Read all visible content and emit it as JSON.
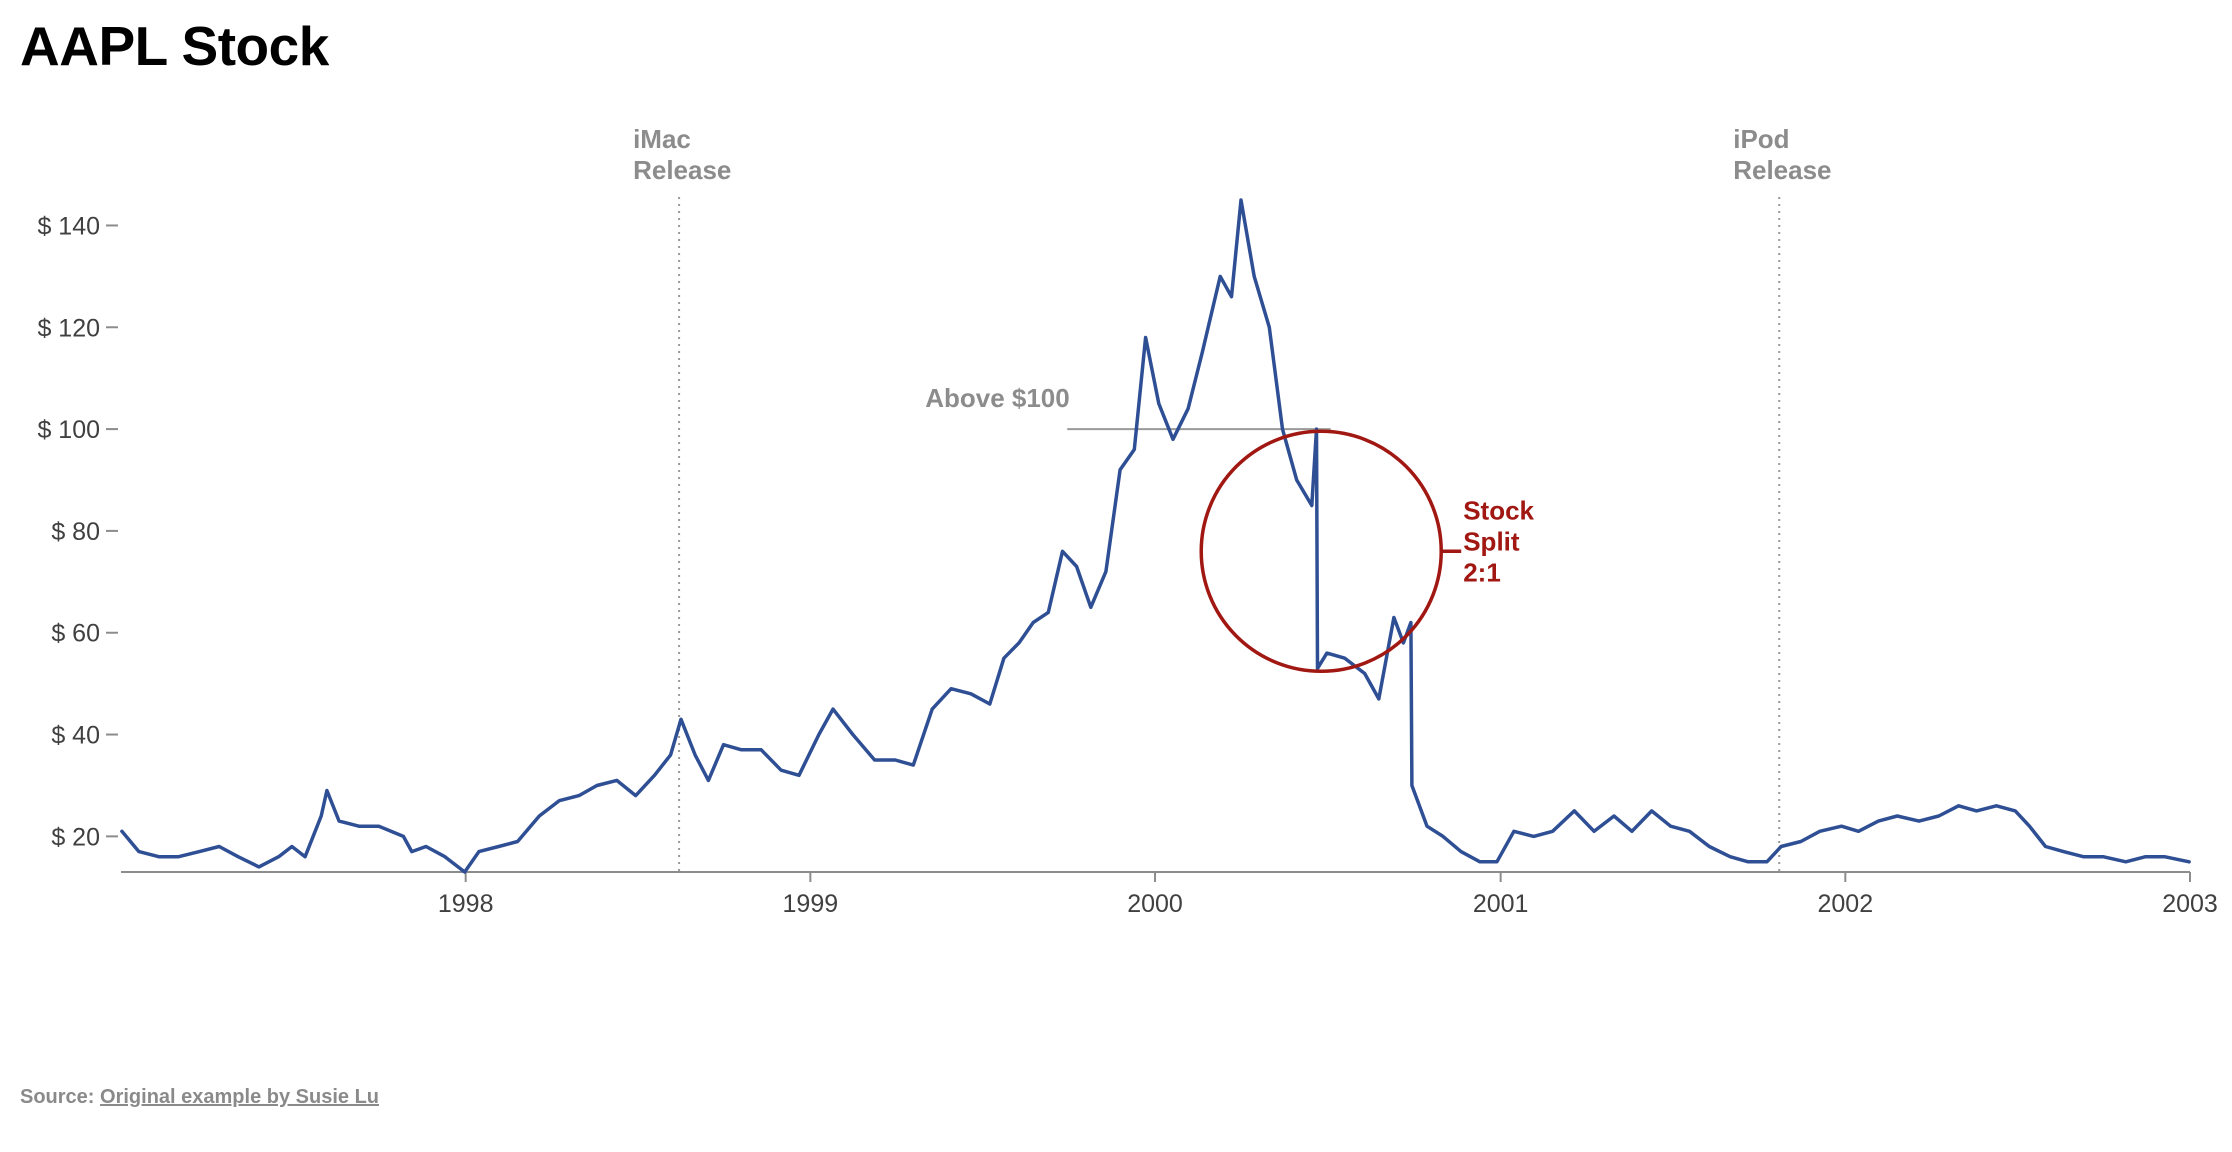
{
  "page": {
    "title": "AAPL Stock",
    "source_prefix": "Source: ",
    "source_link": "Original example by Susie Lu"
  },
  "colors": {
    "line": "#2f4f95",
    "axis": "#8c8c8c",
    "annotation": "#8c8c8c",
    "highlight": "#a11712"
  },
  "chart_data": {
    "type": "line",
    "title": "AAPL Stock",
    "xlabel": "",
    "ylabel": "",
    "xlim": [
      "1997-01-01",
      "2003-01-01"
    ],
    "ylim": [
      13,
      145
    ],
    "y_ticks": [
      20,
      40,
      60,
      80,
      100,
      120,
      140
    ],
    "y_tick_labels": [
      "$ 20",
      "$ 40",
      "$ 60",
      "$ 80",
      "$ 100",
      "$ 120",
      "$ 140"
    ],
    "x_ticks": [
      "1998-01-01",
      "1999-01-01",
      "2000-01-01",
      "2001-01-01",
      "2002-01-01",
      "2003-01-01"
    ],
    "x_tick_labels": [
      "1998",
      "1999",
      "2000",
      "2001",
      "2002",
      "2003"
    ],
    "grid": false,
    "series": [
      {
        "x": [
          "1997-01-02",
          "1997-01-20",
          "1997-02-10",
          "1997-03-03",
          "1997-03-25",
          "1997-04-15",
          "1997-05-05",
          "1997-05-27",
          "1997-06-17",
          "1997-07-01",
          "1997-07-15",
          "1997-08-01",
          "1997-08-07",
          "1997-08-20",
          "1997-09-10",
          "1997-10-01",
          "1997-10-27",
          "1997-11-05",
          "1997-11-20",
          "1997-12-10",
          "1997-12-31",
          "1998-01-15",
          "1998-02-05",
          "1998-02-25",
          "1998-03-20",
          "1998-04-10",
          "1998-05-01",
          "1998-05-20",
          "1998-06-10",
          "1998-06-30",
          "1998-07-20",
          "1998-08-06",
          "1998-08-17",
          "1998-09-01",
          "1998-09-15",
          "1998-10-01",
          "1998-10-20",
          "1998-11-10",
          "1998-12-01",
          "1998-12-20",
          "1999-01-10",
          "1999-01-25",
          "1999-02-15",
          "1999-03-10",
          "1999-04-01",
          "1999-04-20",
          "1999-05-10",
          "1999-05-30",
          "1999-06-20",
          "1999-07-10",
          "1999-07-25",
          "1999-08-10",
          "1999-08-25",
          "1999-09-10",
          "1999-09-25",
          "1999-10-10",
          "1999-10-25",
          "1999-11-10",
          "1999-11-25",
          "1999-12-10",
          "1999-12-22",
          "2000-01-05",
          "2000-01-20",
          "2000-02-05",
          "2000-02-20",
          "2000-03-10",
          "2000-03-22",
          "2000-04-01",
          "2000-04-15",
          "2000-05-01",
          "2000-05-15",
          "2000-05-30",
          "2000-06-15",
          "2000-06-20",
          "2000-06-21",
          "2000-07-01",
          "2000-07-20",
          "2000-08-10",
          "2000-08-25",
          "2000-09-10",
          "2000-09-20",
          "2000-09-28",
          "2000-09-29",
          "2000-10-15",
          "2000-11-01",
          "2000-11-20",
          "2000-12-10",
          "2000-12-28",
          "2001-01-15",
          "2001-02-05",
          "2001-02-25",
          "2001-03-20",
          "2001-04-10",
          "2001-05-01",
          "2001-05-20",
          "2001-06-10",
          "2001-06-30",
          "2001-07-20",
          "2001-08-10",
          "2001-09-01",
          "2001-09-20",
          "2001-10-10",
          "2001-10-25",
          "2001-11-15",
          "2001-12-05",
          "2001-12-28",
          "2002-01-15",
          "2002-02-05",
          "2002-02-25",
          "2002-03-20",
          "2002-04-10",
          "2002-05-01",
          "2002-05-20",
          "2002-06-10",
          "2002-06-30",
          "2002-07-15",
          "2002-08-01",
          "2002-08-20",
          "2002-09-10",
          "2002-10-01",
          "2002-10-25",
          "2002-11-15",
          "2002-12-05",
          "2002-12-31"
        ],
        "y": [
          21,
          17,
          16,
          16,
          17,
          18,
          16,
          14,
          16,
          18,
          16,
          24,
          29,
          23,
          22,
          22,
          20,
          17,
          18,
          16,
          13,
          17,
          18,
          19,
          24,
          27,
          28,
          30,
          31,
          28,
          32,
          36,
          43,
          36,
          31,
          38,
          37,
          37,
          33,
          32,
          40,
          45,
          40,
          35,
          35,
          34,
          45,
          49,
          48,
          46,
          55,
          58,
          62,
          64,
          76,
          73,
          65,
          72,
          92,
          96,
          118,
          105,
          98,
          104,
          115,
          130,
          126,
          145,
          130,
          120,
          100,
          90,
          85,
          100,
          53,
          56,
          55,
          52,
          47,
          63,
          58,
          62,
          30,
          22,
          20,
          17,
          15,
          15,
          21,
          20,
          21,
          25,
          21,
          24,
          21,
          25,
          22,
          21,
          18,
          16,
          15,
          15,
          18,
          19,
          21,
          22,
          21,
          23,
          24,
          23,
          24,
          26,
          25,
          26,
          25,
          22,
          18,
          17,
          16,
          16,
          15,
          16,
          16,
          15
        ]
      }
    ],
    "annotations": [
      {
        "type": "vertical-line",
        "x": "1998-08-15",
        "label_lines": [
          "iMac",
          "Release"
        ]
      },
      {
        "type": "vertical-line",
        "x": "2001-10-23",
        "label_lines": [
          "iPod",
          "Release"
        ]
      },
      {
        "type": "threshold",
        "y": 100,
        "x_start": "1999-09-30",
        "x_end": "2000-07-05",
        "label": "Above $100"
      },
      {
        "type": "circle",
        "x": "2000-06-25",
        "y": 76,
        "label_lines": [
          "Stock",
          "Split",
          "2:1"
        ]
      }
    ]
  }
}
